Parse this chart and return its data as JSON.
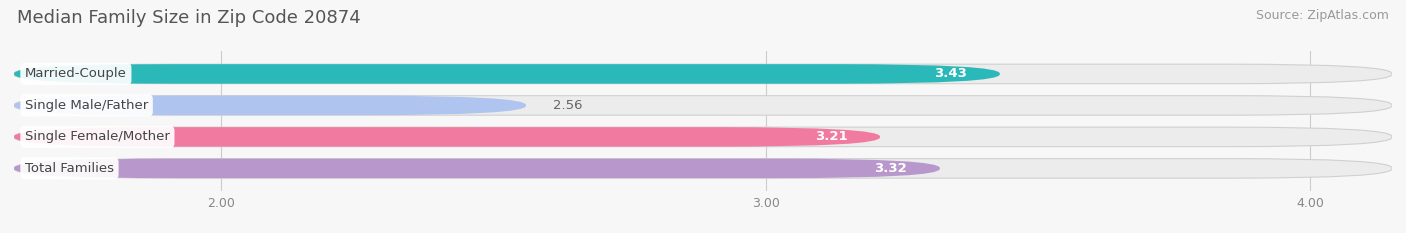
{
  "title": "Median Family Size in Zip Code 20874",
  "source": "Source: ZipAtlas.com",
  "categories": [
    "Married-Couple",
    "Single Male/Father",
    "Single Female/Mother",
    "Total Families"
  ],
  "values": [
    3.43,
    2.56,
    3.21,
    3.32
  ],
  "bar_colors": [
    "#2ab8b8",
    "#afc4ee",
    "#f07aA0",
    "#b898cc"
  ],
  "label_bg_colors": [
    "#2ab8b8",
    "#afc4ee",
    "#f07aA0",
    "#b898cc"
  ],
  "xlim_min": 1.62,
  "xlim_max": 4.15,
  "xticks": [
    2.0,
    3.0,
    4.0
  ],
  "xtick_labels": [
    "2.00",
    "3.00",
    "4.00"
  ],
  "bar_height": 0.62,
  "background_color": "#f7f7f7",
  "bar_bg_color": "#ececec",
  "title_fontsize": 13,
  "source_fontsize": 9,
  "label_fontsize": 9.5,
  "value_fontsize": 9.5,
  "tick_fontsize": 9
}
